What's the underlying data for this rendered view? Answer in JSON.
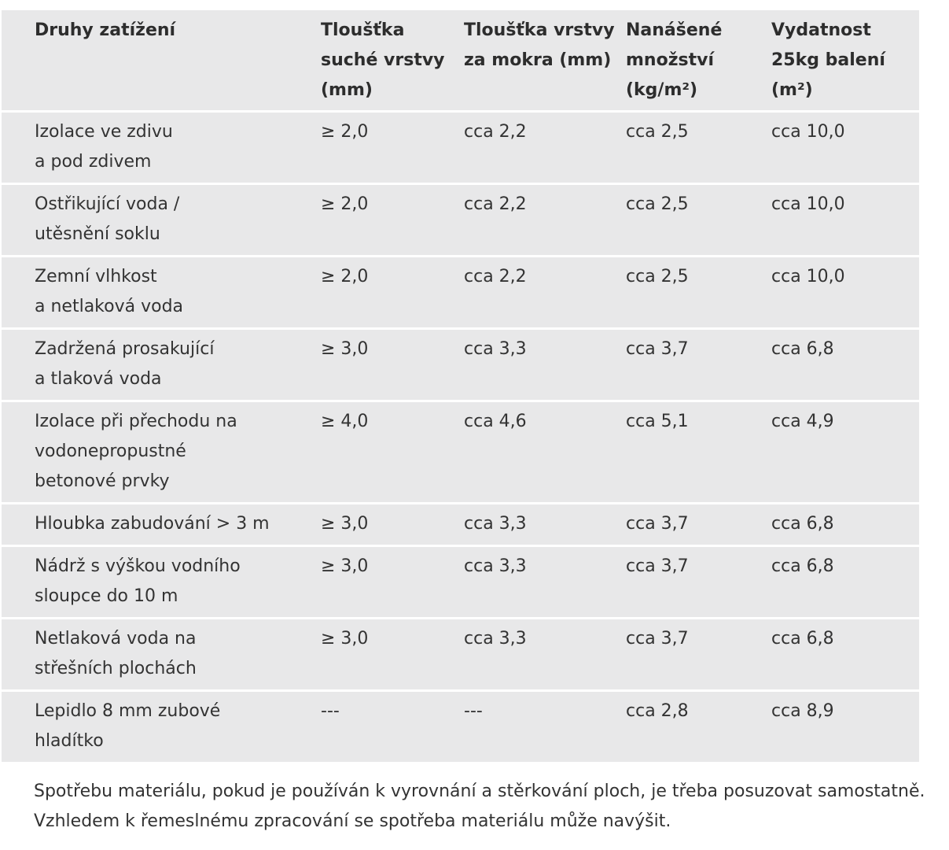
{
  "table": {
    "headers": [
      "Druhy zatížení",
      "Tloušťka suché vrstvy (mm)",
      "Tloušťka vrstvy za mokra (mm)",
      "Nanášené množství (kg/m²)",
      "Vydatnost 25kg balení (m²)"
    ],
    "rows": [
      [
        "Izolace ve zdivu\na pod zdivem",
        "≥ 2,0",
        "cca 2,2",
        "cca 2,5",
        "cca 10,0"
      ],
      [
        "Ostřikující voda /\nutěsnění soklu",
        "≥ 2,0",
        "cca 2,2",
        "cca 2,5",
        "cca 10,0"
      ],
      [
        "Zemní vlhkost\na netlaková voda",
        "≥ 2,0",
        "cca 2,2",
        "cca 2,5",
        "cca 10,0"
      ],
      [
        "Zadržená prosakující\na tlaková voda",
        "≥ 3,0",
        "cca 3,3",
        "cca 3,7",
        "cca 6,8"
      ],
      [
        "Izolace při přechodu na\nvodonepropustné\nbetonové prvky",
        "≥ 4,0",
        "cca 4,6",
        "cca 5,1",
        "cca 4,9"
      ],
      [
        "Hloubka zabudování > 3 m",
        "≥ 3,0",
        "cca 3,3",
        "cca 3,7",
        "cca 6,8"
      ],
      [
        "Nádrž s výškou vodního\nsloupce do 10 m",
        "≥ 3,0",
        "cca 3,3",
        "cca 3,7",
        "cca 6,8"
      ],
      [
        "Netlaková voda na\nstřešních plochách",
        "≥ 3,0",
        "cca 3,3",
        "cca 3,7",
        "cca 6,8"
      ],
      [
        "Lepidlo 8 mm zubové\nhladítko",
        "---",
        "---",
        "cca 2,8",
        "cca 8,9"
      ]
    ]
  },
  "note": "Spotřebu materiálu, pokud je používán k vyrovnání a stěrkování ploch, je třeba posuzovat samostatně. Vzhledem k řemeslnému zpracování se spotřeba materiálu může navýšit.",
  "colors": {
    "cell_background": "#e8e8e9",
    "row_separator": "#ffffff",
    "text": "#333333"
  }
}
